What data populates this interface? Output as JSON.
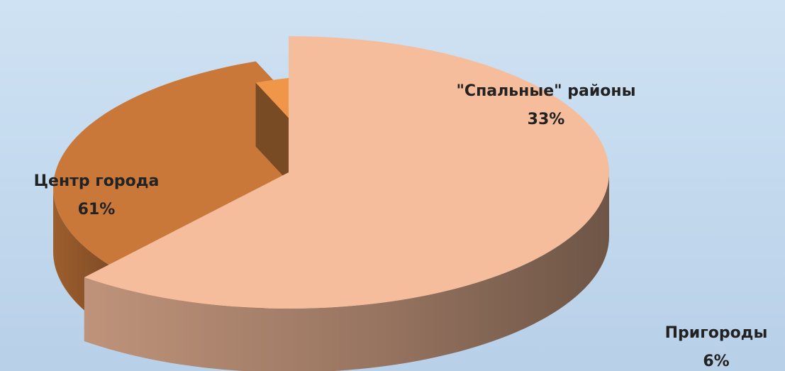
{
  "chart_data": {
    "type": "pie",
    "style": "3d-exploded",
    "slices": [
      {
        "label": "Центр города",
        "value": 61,
        "percent_text": "61%",
        "color": "#f5bd9c"
      },
      {
        "label": "\"Спальные\"  районы",
        "value": 33,
        "percent_text": "33%",
        "color": "#c9783a"
      },
      {
        "label": "Пригороды",
        "value": 6,
        "percent_text": "6%",
        "color": "#ef9648"
      }
    ],
    "background": "#c6dcef"
  }
}
